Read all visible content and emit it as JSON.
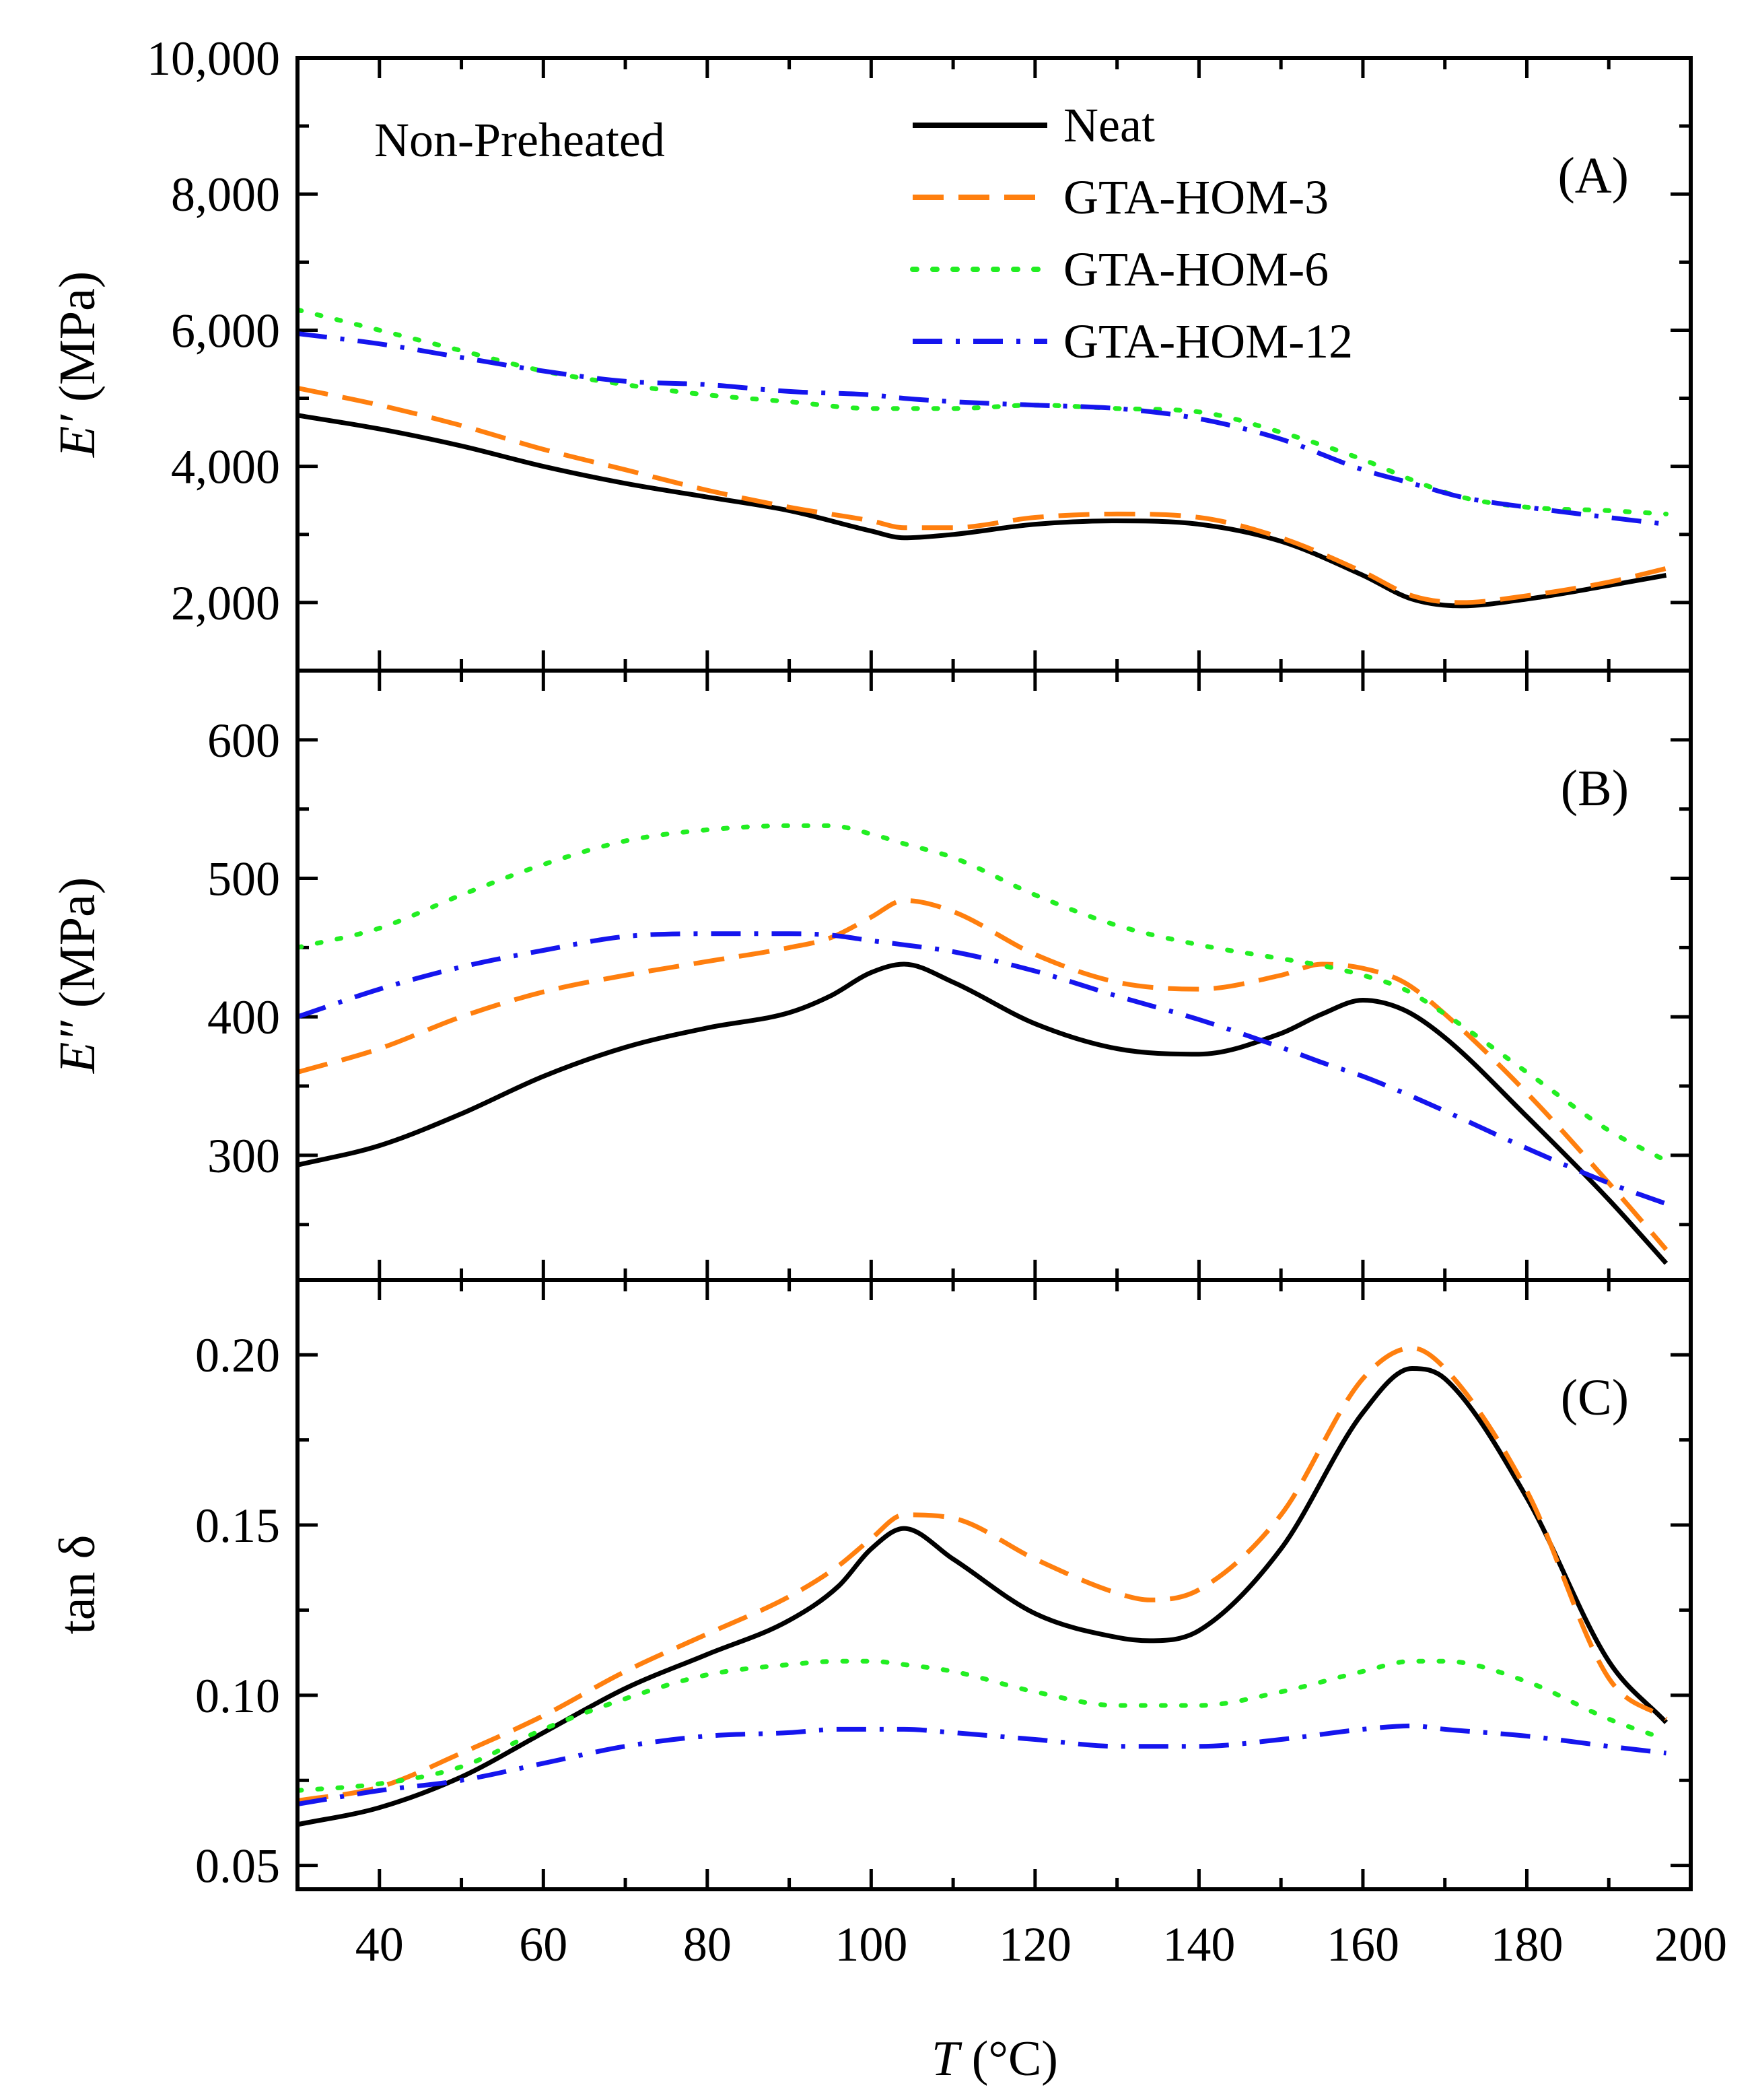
{
  "chart_data": {
    "type": "line",
    "shared_x": {
      "label": "T",
      "unit": "(°C)",
      "range": [
        30,
        200
      ],
      "ticks": [
        40,
        60,
        80,
        100,
        120,
        140,
        160,
        180,
        200
      ],
      "tick_labels": [
        "40",
        "60",
        "80",
        "100",
        "120",
        "140",
        "160",
        "180",
        "200"
      ]
    },
    "annotation": "Non-Preheated",
    "legend": {
      "placement": "top-right of panel A",
      "entries": [
        {
          "label": "Neat",
          "color": "#000000",
          "style": "solid"
        },
        {
          "label": "GTA-HOM-3",
          "color": "#ff7f0e",
          "style": "dash"
        },
        {
          "label": "GTA-HOM-6",
          "color": "#22ee22",
          "style": "dot"
        },
        {
          "label": "GTA-HOM-12",
          "color": "#1515ee",
          "style": "dashdot"
        }
      ]
    },
    "panels": [
      {
        "id": "A",
        "panel_label": "(A)",
        "ylabel_symbol": "E′",
        "ylabel_unit": " (MPa)",
        "ylim": [
          1000,
          10000
        ],
        "yticks": [
          2000,
          4000,
          6000,
          8000,
          10000
        ],
        "ytick_labels": [
          "2,000",
          "4,000",
          "6,000",
          "8,000",
          "10,000"
        ],
        "x": [
          30,
          40,
          50,
          60,
          70,
          80,
          90,
          100,
          104,
          110,
          120,
          130,
          140,
          150,
          160,
          166,
          172,
          180,
          190,
          197
        ],
        "series": [
          {
            "name": "Neat",
            "values": [
              4750,
              4550,
              4300,
              4000,
              3750,
              3550,
              3350,
              3050,
              2950,
              3000,
              3150,
              3200,
              3150,
              2900,
              2400,
              2050,
              1950,
              2050,
              2250,
              2400
            ]
          },
          {
            "name": "GTA-HOM-3",
            "values": [
              5150,
              4900,
              4600,
              4250,
              3950,
              3650,
              3400,
              3200,
              3100,
              3100,
              3250,
              3300,
              3250,
              2950,
              2450,
              2100,
              2000,
              2100,
              2300,
              2500
            ]
          },
          {
            "name": "GTA-HOM-6",
            "values": [
              6300,
              6000,
              5700,
              5400,
              5200,
              5050,
              4950,
              4850,
              4850,
              4850,
              4900,
              4850,
              4800,
              4500,
              4100,
              3800,
              3550,
              3400,
              3350,
              3300
            ]
          },
          {
            "name": "GTA-HOM-12",
            "values": [
              5950,
              5800,
              5600,
              5400,
              5250,
              5200,
              5100,
              5050,
              5000,
              4950,
              4900,
              4850,
              4700,
              4400,
              3950,
              3750,
              3550,
              3400,
              3250,
              3150
            ]
          }
        ]
      },
      {
        "id": "B",
        "panel_label": "(B)",
        "ylabel_symbol": "E″",
        "ylabel_unit": " (MPa)",
        "ylim": [
          210,
          650
        ],
        "yticks": [
          300,
          400,
          500,
          600
        ],
        "ytick_labels": [
          "300",
          "400",
          "500",
          "600"
        ],
        "x": [
          30,
          40,
          50,
          60,
          70,
          80,
          90,
          95,
          100,
          104,
          110,
          120,
          130,
          140,
          150,
          155,
          160,
          165,
          170,
          180,
          190,
          197
        ],
        "series": [
          {
            "name": "Neat",
            "values": [
              293,
              307,
              330,
              357,
              378,
              392,
              403,
              415,
              432,
              438,
              425,
              395,
              377,
              373,
              388,
              402,
              412,
              405,
              385,
              328,
              268,
              222
            ]
          },
          {
            "name": "GTA-HOM-3",
            "values": [
              360,
              377,
              400,
              418,
              430,
              440,
              450,
              457,
              472,
              484,
              476,
              445,
              425,
              420,
              430,
              438,
              435,
              425,
              402,
              345,
              280,
              232
            ]
          },
          {
            "name": "GTA-HOM-6",
            "values": [
              450,
              464,
              488,
              510,
              527,
              535,
              538,
              538,
              532,
              525,
              515,
              488,
              466,
              452,
              442,
              437,
              430,
              420,
              402,
              360,
              318,
              296
            ]
          },
          {
            "name": "GTA-HOM-12",
            "values": [
              400,
              420,
              436,
              448,
              458,
              460,
              460,
              459,
              455,
              452,
              447,
              433,
              415,
              398,
              378,
              367,
              357,
              345,
              332,
              305,
              280,
              265
            ]
          }
        ]
      },
      {
        "id": "C",
        "panel_label": "(C)",
        "ylabel_symbol": "tan δ",
        "ylabel_unit": "",
        "ylim": [
          0.043,
          0.222
        ],
        "yticks": [
          0.05,
          0.1,
          0.15,
          0.2
        ],
        "ytick_labels": [
          "0.05",
          "0.10",
          "0.15",
          "0.20"
        ],
        "x": [
          30,
          40,
          50,
          60,
          70,
          80,
          90,
          96,
          100,
          104,
          110,
          120,
          130,
          134,
          140,
          150,
          160,
          166,
          170,
          180,
          190,
          197
        ],
        "series": [
          {
            "name": "Neat",
            "values": [
              0.062,
              0.067,
              0.076,
              0.089,
              0.102,
              0.112,
              0.122,
              0.132,
              0.143,
              0.149,
              0.14,
              0.124,
              0.117,
              0.116,
              0.119,
              0.143,
              0.183,
              0.196,
              0.193,
              0.158,
              0.11,
              0.092
            ]
          },
          {
            "name": "GTA-HOM-3",
            "values": [
              0.069,
              0.073,
              0.083,
              0.094,
              0.107,
              0.118,
              0.129,
              0.138,
              0.146,
              0.153,
              0.152,
              0.14,
              0.13,
              0.128,
              0.131,
              0.153,
              0.193,
              0.202,
              0.196,
              0.16,
              0.105,
              0.093
            ]
          },
          {
            "name": "GTA-HOM-6",
            "values": [
              0.072,
              0.074,
              0.079,
              0.09,
              0.099,
              0.106,
              0.109,
              0.11,
              0.11,
              0.109,
              0.107,
              0.101,
              0.097,
              0.097,
              0.097,
              0.101,
              0.107,
              0.11,
              0.11,
              0.104,
              0.093,
              0.087
            ]
          },
          {
            "name": "GTA-HOM-12",
            "values": [
              0.068,
              0.072,
              0.075,
              0.08,
              0.085,
              0.088,
              0.089,
              0.09,
              0.09,
              0.09,
              0.089,
              0.087,
              0.085,
              0.085,
              0.085,
              0.087,
              0.09,
              0.091,
              0.09,
              0.088,
              0.085,
              0.083
            ]
          }
        ]
      }
    ]
  }
}
